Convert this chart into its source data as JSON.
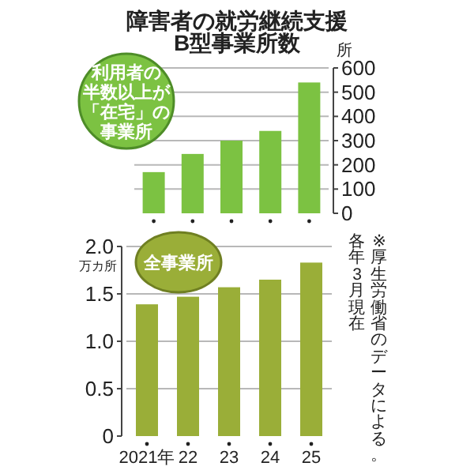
{
  "chart_data": [
    {
      "type": "bar",
      "title": "障害者の就労継続支援\nB型事業所数",
      "ylabel": "所",
      "categories": [
        null,
        null,
        null,
        null,
        null
      ],
      "series": [
        {
          "color": "#7cc242",
          "values": [
            170,
            245,
            300,
            340,
            540
          ]
        }
      ],
      "ylim": [
        0,
        600
      ],
      "yticks": [
        0,
        100,
        200,
        300,
        400,
        500,
        600
      ],
      "grid": "y",
      "tick_labels": "y",
      "annotations": [
        "利用者の半数以上が「在宅」の事業所"
      ]
    },
    {
      "type": "bar",
      "ylabel": "万カ所",
      "categories": [
        "2021年",
        "22",
        "23",
        "24",
        "25"
      ],
      "series": [
        {
          "color": "#9aae38",
          "values": [
            1.39,
            1.47,
            1.57,
            1.65,
            1.83
          ]
        }
      ],
      "ylim": [
        0,
        2.0
      ],
      "yticks": [
        0,
        0.5,
        {
          "value": 1.0,
          "label": "1.0"
        },
        1.5,
        {
          "value": 2.0,
          "label": "2.0"
        }
      ],
      "grid": "y",
      "annotations": [
        "全事業所",
        "※厚生労働省のデータによる。各年3月現在"
      ]
    }
  ]
}
